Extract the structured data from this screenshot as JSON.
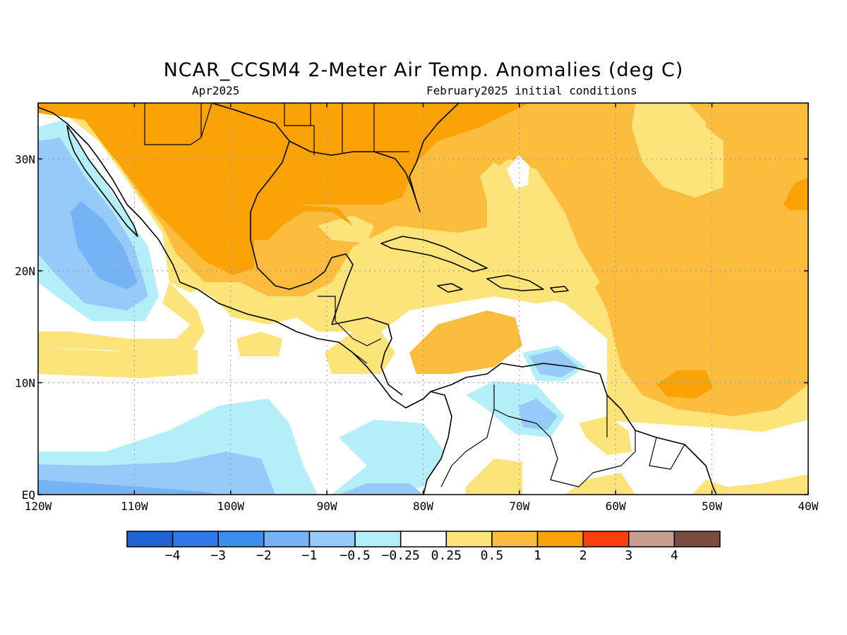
{
  "title": "NCAR_CCSM4 2-Meter Air Temp. Anomalies (deg C)",
  "subtitle_left": "Apr2025",
  "subtitle_right": "February2025 initial conditions",
  "map": {
    "lon_range": [
      -120,
      -40
    ],
    "lat_range": [
      0,
      35
    ],
    "grid": true,
    "lon_ticks": [
      {
        "value": -120,
        "label": "120W"
      },
      {
        "value": -110,
        "label": "110W"
      },
      {
        "value": -100,
        "label": "100W"
      },
      {
        "value": -90,
        "label": "90W"
      },
      {
        "value": -80,
        "label": "80W"
      },
      {
        "value": -70,
        "label": "70W"
      },
      {
        "value": -60,
        "label": "60W"
      },
      {
        "value": -50,
        "label": "50W"
      },
      {
        "value": -40,
        "label": "40W"
      }
    ],
    "lat_ticks": [
      {
        "value": 0,
        "label": "EQ"
      },
      {
        "value": 10,
        "label": "10N"
      },
      {
        "value": 20,
        "label": "20N"
      },
      {
        "value": 30,
        "label": "30N"
      }
    ]
  },
  "colorbar": {
    "colors": [
      "#1f64d4",
      "#2e78e8",
      "#3a8ef2",
      "#76b2f6",
      "#96caf8",
      "#b4eef8",
      "#ffffff",
      "#fde47a",
      "#fcbc3e",
      "#fba206",
      "#fb3e0c",
      "#c89e92",
      "#7a4c42"
    ],
    "labels": [
      "−4",
      "−3",
      "−2",
      "−1",
      "−0.5",
      "−0.25",
      "0.25",
      "0.5",
      "1",
      "2",
      "3",
      "4"
    ]
  }
}
